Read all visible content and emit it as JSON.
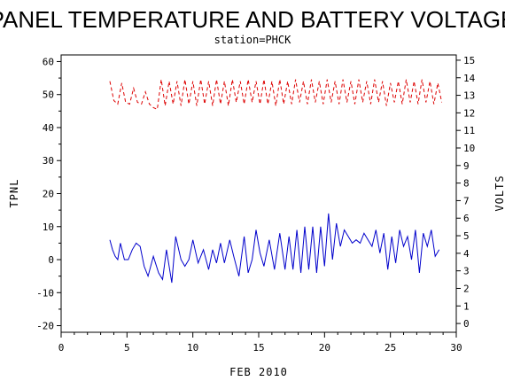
{
  "chart_data": {
    "type": "line",
    "title": "PANEL TEMPERATURE AND BATTERY VOLTAGE",
    "subtitle": "station=PHCK",
    "xlabel": "FEB 2010",
    "ylabel_left": "TPNL",
    "ylabel_right": "VOLTS",
    "xlim": [
      0,
      30
    ],
    "ylim_left": [
      -22,
      62
    ],
    "ylim_right": [
      -0.5,
      15.3
    ],
    "x_ticks": [
      0,
      5,
      10,
      15,
      20,
      25,
      30
    ],
    "y_ticks_left": [
      -20,
      -10,
      0,
      10,
      20,
      30,
      40,
      50,
      60
    ],
    "y_ticks_right": [
      0,
      1,
      2,
      3,
      4,
      5,
      6,
      7,
      8,
      9,
      10,
      11,
      12,
      13,
      14,
      15
    ],
    "colors": {
      "tpnl": "#0000cc",
      "volts": "#dd0000",
      "axes": "#000000"
    },
    "series": [
      {
        "key": "tpnl",
        "axis": "left",
        "style": "solid",
        "x": [
          3.7,
          3.9,
          4.1,
          4.3,
          4.5,
          4.8,
          5.1,
          5.4,
          5.7,
          6.0,
          6.3,
          6.6,
          7.0,
          7.4,
          7.7,
          8.0,
          8.4,
          8.7,
          9.1,
          9.4,
          9.7,
          10.0,
          10.4,
          10.8,
          11.2,
          11.5,
          11.8,
          12.1,
          12.4,
          12.8,
          13.1,
          13.5,
          13.9,
          14.2,
          14.5,
          14.8,
          15.1,
          15.4,
          15.8,
          16.2,
          16.6,
          17.0,
          17.3,
          17.6,
          17.9,
          18.2,
          18.5,
          18.8,
          19.1,
          19.4,
          19.7,
          20.0,
          20.3,
          20.6,
          20.9,
          21.2,
          21.5,
          21.8,
          22.1,
          22.4,
          22.7,
          23.0,
          23.3,
          23.6,
          23.9,
          24.2,
          24.5,
          24.8,
          25.1,
          25.4,
          25.7,
          26.0,
          26.3,
          26.6,
          26.9,
          27.2,
          27.5,
          27.8,
          28.1,
          28.4,
          28.7
        ],
        "y": [
          6,
          3,
          1,
          0,
          5,
          0,
          0,
          3,
          5,
          4,
          -2,
          -5,
          1,
          -4,
          -6,
          3,
          -7,
          7,
          0,
          -2,
          0,
          6,
          -1,
          3,
          -3,
          3,
          -1,
          5,
          -1,
          6,
          1,
          -5,
          7,
          -4,
          0,
          9,
          2,
          -2,
          6,
          -3,
          8,
          -3,
          7,
          -3,
          9,
          -4,
          10,
          -3,
          10,
          -4,
          10,
          -2,
          14,
          0,
          11,
          4,
          9,
          7,
          5,
          6,
          5,
          8,
          6,
          4,
          9,
          2,
          8,
          -3,
          7,
          -1,
          9,
          4,
          7,
          0,
          9,
          -4,
          8,
          4,
          9,
          1,
          3
        ]
      },
      {
        "key": "volts",
        "axis": "right",
        "style": "dashed",
        "x": [
          3.7,
          4.0,
          4.3,
          4.6,
          4.9,
          5.2,
          5.5,
          5.8,
          6.1,
          6.4,
          6.7,
          7.0,
          7.3,
          7.6,
          7.9,
          8.2,
          8.5,
          8.8,
          9.1,
          9.4,
          9.7,
          10.0,
          10.3,
          10.6,
          10.9,
          11.2,
          11.5,
          11.8,
          12.1,
          12.4,
          12.7,
          13.0,
          13.3,
          13.6,
          13.9,
          14.2,
          14.5,
          14.8,
          15.1,
          15.4,
          15.7,
          16.0,
          16.3,
          16.6,
          16.9,
          17.2,
          17.5,
          17.8,
          18.1,
          18.4,
          18.7,
          19.0,
          19.3,
          19.6,
          19.9,
          20.2,
          20.5,
          20.8,
          21.1,
          21.4,
          21.7,
          22.0,
          22.3,
          22.6,
          22.9,
          23.2,
          23.5,
          23.8,
          24.1,
          24.4,
          24.7,
          25.0,
          25.3,
          25.6,
          25.9,
          26.2,
          26.5,
          26.8,
          27.1,
          27.4,
          27.7,
          28.0,
          28.3,
          28.6,
          28.9
        ],
        "y": [
          13.8,
          12.7,
          12.5,
          13.7,
          12.6,
          12.5,
          13.4,
          12.6,
          12.5,
          13.2,
          12.5,
          12.3,
          12.2,
          13.9,
          12.4,
          13.8,
          12.5,
          13.8,
          12.4,
          13.9,
          12.5,
          13.8,
          12.4,
          13.9,
          12.5,
          13.8,
          12.4,
          13.9,
          12.5,
          13.8,
          12.4,
          13.9,
          12.6,
          13.8,
          12.5,
          13.9,
          12.6,
          13.8,
          12.5,
          13.9,
          12.5,
          13.8,
          12.4,
          13.9,
          12.5,
          13.8,
          12.5,
          13.9,
          12.6,
          13.8,
          12.5,
          13.9,
          12.6,
          13.8,
          12.5,
          13.9,
          12.6,
          13.8,
          12.5,
          13.9,
          12.6,
          13.8,
          12.5,
          13.9,
          12.6,
          13.8,
          12.5,
          13.9,
          12.6,
          13.8,
          12.4,
          13.7,
          12.6,
          13.8,
          12.5,
          13.9,
          12.6,
          13.8,
          12.5,
          13.9,
          12.6,
          13.8,
          12.5,
          13.7,
          12.6
        ]
      }
    ]
  }
}
